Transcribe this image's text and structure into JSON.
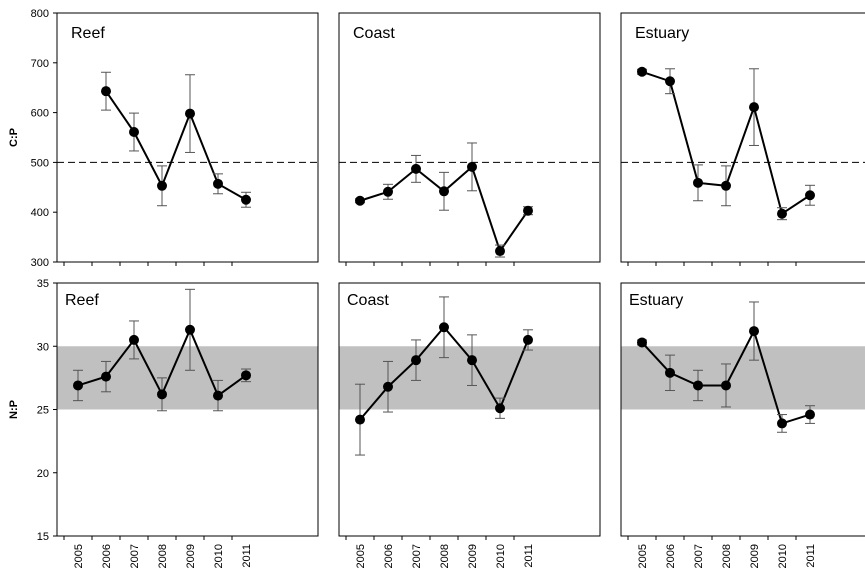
{
  "chart_data": {
    "type": "line",
    "x": [
      "2005",
      "2006",
      "2007",
      "2008",
      "2009",
      "2010",
      "2011"
    ],
    "rows": [
      {
        "ylabel": "C:P",
        "ylim": [
          300,
          800
        ],
        "yticks": [
          "300",
          "400",
          "500",
          "600",
          "700",
          "800"
        ],
        "reference_line": 500,
        "panels": [
          {
            "title": "Reef",
            "values": [
              null,
              643,
              561,
              453,
              598,
              457,
              425
            ],
            "errors": [
              null,
              38,
              38,
              40,
              78,
              20,
              15
            ]
          },
          {
            "title": "Coast",
            "values": [
              423,
              441,
              487,
              442,
              491,
              322,
              403
            ],
            "errors": [
              4,
              15,
              27,
              38,
              48,
              12,
              8
            ]
          },
          {
            "title": "Estuary",
            "values": [
              682,
              663,
              459,
              453,
              611,
              397,
              434
            ],
            "errors": [
              5,
              25,
              36,
              40,
              77,
              12,
              20
            ]
          }
        ]
      },
      {
        "ylabel": "N:P",
        "ylim": [
          15,
          35
        ],
        "yticks": [
          "15",
          "20",
          "25",
          "30",
          "35"
        ],
        "band": [
          25,
          30
        ],
        "panels": [
          {
            "title": "Reef",
            "values": [
              26.9,
              27.6,
              30.5,
              26.2,
              31.3,
              26.1,
              27.7
            ],
            "errors": [
              1.2,
              1.2,
              1.5,
              1.3,
              3.2,
              1.2,
              0.5
            ]
          },
          {
            "title": "Coast",
            "values": [
              24.2,
              26.8,
              28.9,
              31.5,
              28.9,
              25.1,
              30.5
            ],
            "errors": [
              2.8,
              2.0,
              1.6,
              2.4,
              2.0,
              0.8,
              0.8
            ]
          },
          {
            "title": "Estuary",
            "values": [
              30.3,
              27.9,
              26.9,
              26.9,
              31.2,
              23.9,
              24.6
            ],
            "errors": [
              0.2,
              1.4,
              1.2,
              1.7,
              2.3,
              0.7,
              0.7
            ]
          }
        ]
      }
    ],
    "grid": false,
    "colors": {
      "line": "#000000",
      "band": "#c0c0c0",
      "marker": "#000000"
    }
  }
}
